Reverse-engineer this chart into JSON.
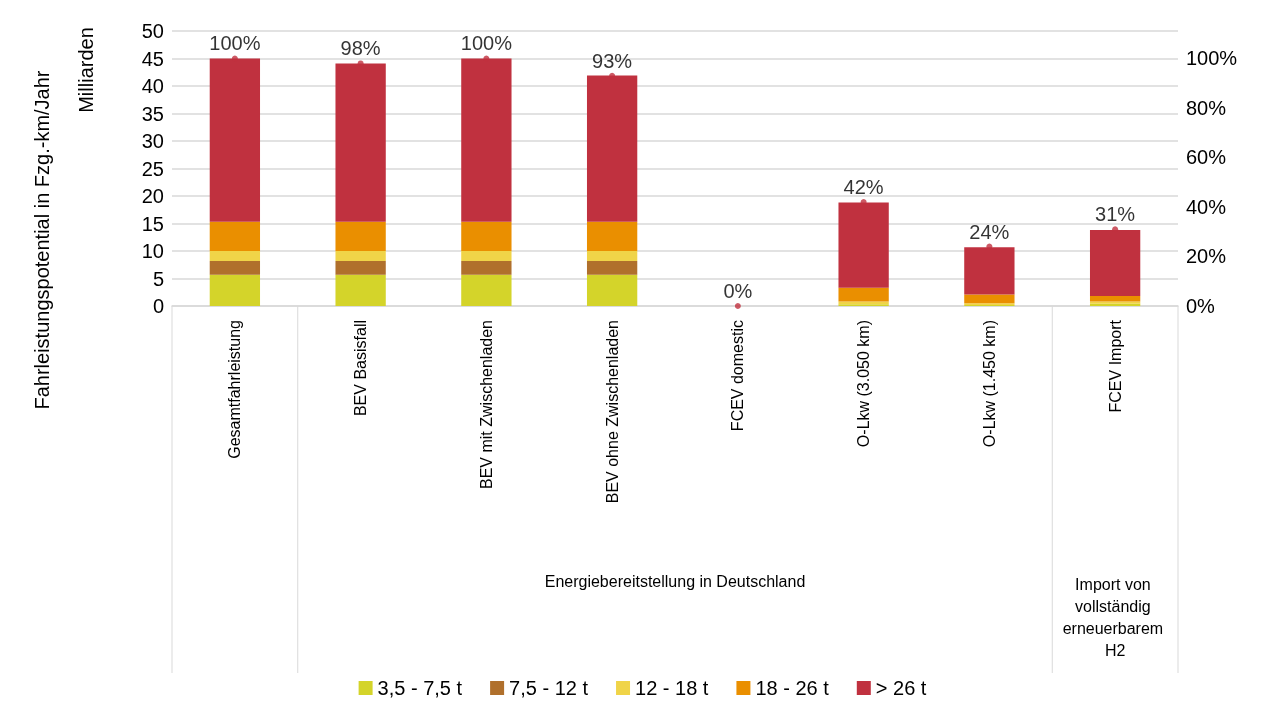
{
  "chart_data": {
    "type": "bar",
    "stacked": true,
    "ylabel": "Fahrleistungspotential in Fzg.-km/Jahr",
    "categories": [
      "Gesamtfahrleistung",
      "BEV Basisfall",
      "BEV mit Zwischenladen",
      "BEV ohne Zwischenladen",
      "FCEV domestic",
      "O-Lkw (3.050 km)",
      "O-Lkw (1.450 km)",
      "FCEV Import"
    ],
    "series": [
      {
        "name": "3,5 - 7,5 t",
        "color": "#d4d42a",
        "values": [
          5.7,
          5.7,
          5.7,
          5.7,
          0,
          0.3,
          0.2,
          0.4
        ]
      },
      {
        "name": "7,5 - 12 t",
        "color": "#b0702c",
        "values": [
          2.5,
          2.5,
          2.5,
          2.5,
          0,
          null,
          null,
          null
        ]
      },
      {
        "name": "12 - 18 t",
        "color": "#f0d448",
        "values": [
          1.8,
          1.8,
          1.8,
          1.8,
          0,
          0.5,
          0.3,
          0.4
        ]
      },
      {
        "name": "18 - 26 t",
        "color": "#ea8f00",
        "values": [
          5.3,
          5.3,
          5.3,
          5.3,
          0,
          2.5,
          1.6,
          1.0
        ]
      },
      {
        "name": "> 26 t",
        "color": "#c0313f",
        "values": [
          29.7,
          28.8,
          29.7,
          26.6,
          0,
          15.5,
          8.6,
          12.0
        ]
      },
      {
        "type": "scatter",
        "axis": "y2",
        "color": "#c0313f",
        "values": [
          100,
          98,
          100,
          93,
          0,
          42,
          24,
          31
        ],
        "value_labels": [
          "100%",
          "98%",
          "100%",
          "93%",
          "0%",
          "42%",
          "24%",
          "31%"
        ]
      }
    ],
    "ylim": [
      0,
      50
    ],
    "yticks": [
      0,
      5,
      10,
      15,
      20,
      25,
      30,
      35,
      40,
      45,
      50
    ],
    "y2lim": [
      0,
      111.1
    ],
    "y2ticks": [
      {
        "value": 0,
        "label": "0%"
      },
      {
        "value": 20,
        "label": "20%"
      },
      {
        "value": 40,
        "label": "40%"
      },
      {
        "value": 60,
        "label": "60%"
      },
      {
        "value": 80,
        "label": "80%"
      },
      {
        "value": 100,
        "label": "100%"
      }
    ],
    "annotations": [
      "Milliarden",
      "Energiebereitstellung in Deutschland",
      "Import von vollständig erneuerbarem H2"
    ],
    "grid": "y",
    "legend": "bottom"
  }
}
